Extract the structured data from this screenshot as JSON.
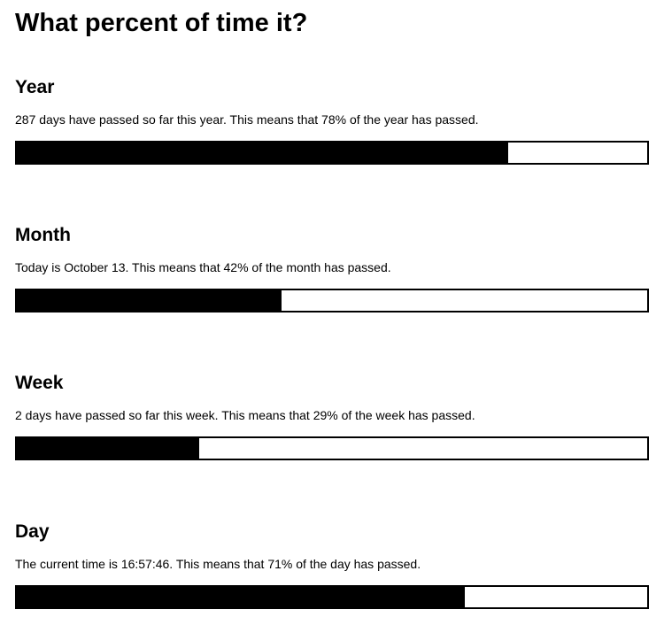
{
  "page": {
    "title": "What percent of time it?"
  },
  "sections": {
    "year": {
      "heading": "Year",
      "text": "287 days have passed so far this year. This means that 78% of the year has passed.",
      "percent": 78
    },
    "month": {
      "heading": "Month",
      "text": "Today is October 13. This means that 42% of the month has passed.",
      "percent": 42
    },
    "week": {
      "heading": "Week",
      "text": "2 days have passed so far this week. This means that 29% of the week has passed.",
      "percent": 29
    },
    "day": {
      "heading": "Day",
      "text": "The current time is 16:57:46. This means that 71% of the day has passed.",
      "percent": 71
    }
  },
  "colors": {
    "bar_fill": "#000000",
    "bar_border": "#000000",
    "background": "#ffffff"
  }
}
